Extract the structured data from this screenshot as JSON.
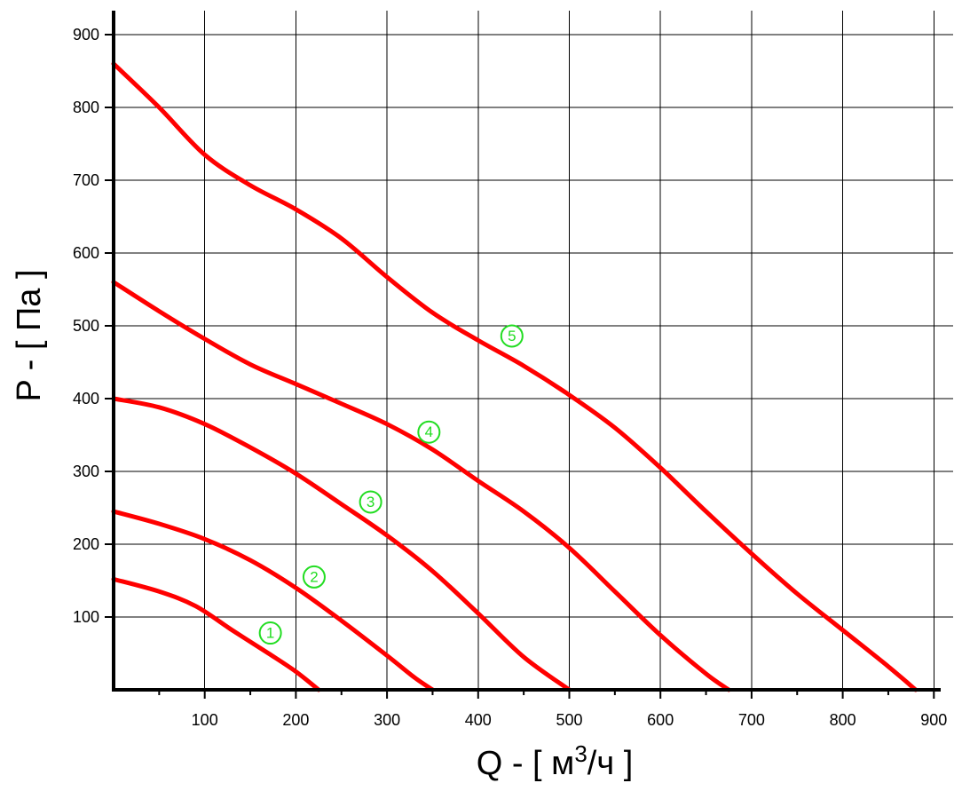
{
  "chart_data": {
    "type": "line",
    "xlabel": "Q - [ м3/ч ]",
    "xlabel_parts": {
      "prefix": "Q - [ м",
      "superscript": "3",
      "suffix": "/ч ]"
    },
    "ylabel": "P - [ Па ]",
    "xlim": [
      0,
      900
    ],
    "ylim": [
      0,
      900
    ],
    "x_ticks": [
      100,
      200,
      300,
      400,
      500,
      600,
      700,
      800,
      900
    ],
    "y_ticks": [
      100,
      200,
      300,
      400,
      500,
      600,
      700,
      800,
      900
    ],
    "grid": true,
    "colors": {
      "curve": "#ff0000",
      "marker": "#22dd22",
      "axis": "#000000",
      "grid": "#000000"
    },
    "series": [
      {
        "label": "1",
        "label_at": [
          172,
          78
        ],
        "points": [
          [
            0,
            152
          ],
          [
            50,
            135
          ],
          [
            90,
            115
          ],
          [
            130,
            82
          ],
          [
            170,
            50
          ],
          [
            200,
            25
          ],
          [
            225,
            0
          ]
        ]
      },
      {
        "label": "2",
        "label_at": [
          220,
          155
        ],
        "points": [
          [
            0,
            245
          ],
          [
            50,
            228
          ],
          [
            100,
            207
          ],
          [
            150,
            178
          ],
          [
            200,
            140
          ],
          [
            250,
            95
          ],
          [
            300,
            47
          ],
          [
            330,
            17
          ],
          [
            350,
            0
          ]
        ]
      },
      {
        "label": "3",
        "label_at": [
          282,
          258
        ],
        "points": [
          [
            0,
            400
          ],
          [
            50,
            388
          ],
          [
            100,
            365
          ],
          [
            150,
            333
          ],
          [
            200,
            297
          ],
          [
            250,
            255
          ],
          [
            300,
            212
          ],
          [
            350,
            163
          ],
          [
            400,
            105
          ],
          [
            450,
            45
          ],
          [
            500,
            0
          ]
        ]
      },
      {
        "label": "4",
        "label_at": [
          346,
          354
        ],
        "points": [
          [
            0,
            560
          ],
          [
            50,
            520
          ],
          [
            100,
            482
          ],
          [
            150,
            447
          ],
          [
            200,
            420
          ],
          [
            250,
            393
          ],
          [
            300,
            365
          ],
          [
            350,
            330
          ],
          [
            400,
            287
          ],
          [
            450,
            245
          ],
          [
            500,
            195
          ],
          [
            550,
            135
          ],
          [
            600,
            75
          ],
          [
            650,
            22
          ],
          [
            675,
            0
          ]
        ]
      },
      {
        "label": "5",
        "label_at": [
          437,
          486
        ],
        "points": [
          [
            0,
            860
          ],
          [
            50,
            800
          ],
          [
            100,
            735
          ],
          [
            150,
            693
          ],
          [
            200,
            660
          ],
          [
            250,
            620
          ],
          [
            300,
            567
          ],
          [
            350,
            518
          ],
          [
            400,
            480
          ],
          [
            450,
            445
          ],
          [
            500,
            405
          ],
          [
            550,
            360
          ],
          [
            600,
            305
          ],
          [
            650,
            245
          ],
          [
            700,
            187
          ],
          [
            750,
            132
          ],
          [
            800,
            82
          ],
          [
            850,
            32
          ],
          [
            880,
            0
          ]
        ]
      }
    ]
  }
}
